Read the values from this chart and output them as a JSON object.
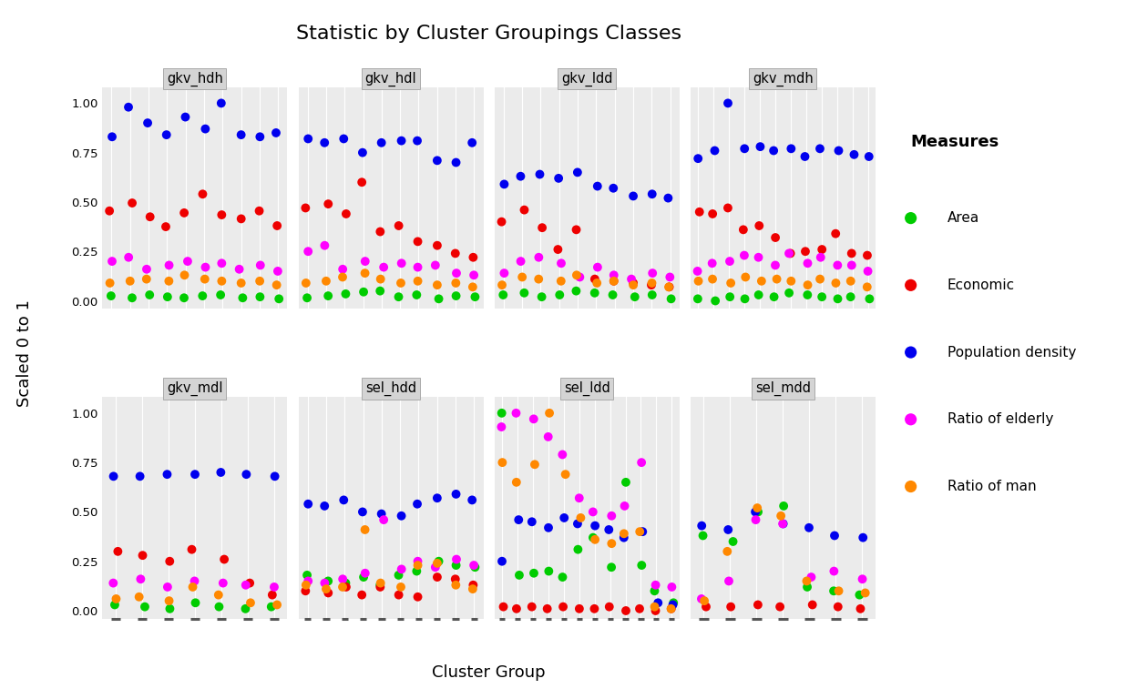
{
  "title": "Statistic by Cluster Groupings Classes",
  "xlabel": "Cluster Group",
  "ylabel": "Scaled 0 to 1",
  "colors": {
    "Area": "#00CC00",
    "Economic": "#EE0000",
    "Population density": "#0000EE",
    "Ratio of elderly": "#FF00FF",
    "Ratio of man": "#FF8800"
  },
  "data": {
    "gkv_hdh": {
      "x_positions": [
        1,
        2,
        3,
        4,
        5,
        6,
        7,
        8,
        9,
        10
      ],
      "Area": [
        0.025,
        0.015,
        0.03,
        0.02,
        0.015,
        0.025,
        0.03,
        0.015,
        0.02,
        0.01
      ],
      "Economic": [
        0.455,
        0.495,
        0.425,
        0.375,
        0.445,
        0.54,
        0.435,
        0.415,
        0.455,
        0.38
      ],
      "Population density": [
        0.83,
        0.98,
        0.9,
        0.84,
        0.93,
        0.87,
        1.0,
        0.84,
        0.83,
        0.85
      ],
      "Ratio of elderly": [
        0.2,
        0.22,
        0.16,
        0.18,
        0.2,
        0.17,
        0.19,
        0.16,
        0.18,
        0.15
      ],
      "Ratio of man": [
        0.09,
        0.1,
        0.11,
        0.1,
        0.13,
        0.11,
        0.1,
        0.09,
        0.1,
        0.08
      ]
    },
    "gkv_hdl": {
      "x_positions": [
        1,
        2,
        3,
        4,
        5,
        6,
        7,
        8,
        9,
        10
      ],
      "Area": [
        0.015,
        0.025,
        0.035,
        0.045,
        0.05,
        0.02,
        0.03,
        0.01,
        0.025,
        0.02
      ],
      "Economic": [
        0.47,
        0.49,
        0.44,
        0.6,
        0.35,
        0.38,
        0.3,
        0.28,
        0.24,
        0.22
      ],
      "Population density": [
        0.82,
        0.8,
        0.82,
        0.75,
        0.8,
        0.81,
        0.81,
        0.71,
        0.7,
        0.8
      ],
      "Ratio of elderly": [
        0.25,
        0.28,
        0.16,
        0.2,
        0.17,
        0.19,
        0.17,
        0.18,
        0.14,
        0.13
      ],
      "Ratio of man": [
        0.09,
        0.1,
        0.12,
        0.14,
        0.11,
        0.09,
        0.1,
        0.08,
        0.09,
        0.07
      ]
    },
    "gkv_ldd": {
      "x_positions": [
        1,
        2,
        3,
        4,
        5,
        6,
        7,
        8,
        9,
        10
      ],
      "Area": [
        0.03,
        0.04,
        0.02,
        0.03,
        0.05,
        0.04,
        0.03,
        0.02,
        0.03,
        0.01
      ],
      "Economic": [
        0.4,
        0.46,
        0.37,
        0.26,
        0.36,
        0.11,
        0.1,
        0.09,
        0.08,
        0.07
      ],
      "Population density": [
        0.59,
        0.63,
        0.64,
        0.62,
        0.65,
        0.58,
        0.57,
        0.53,
        0.54,
        0.52
      ],
      "Ratio of elderly": [
        0.14,
        0.2,
        0.22,
        0.19,
        0.12,
        0.17,
        0.13,
        0.11,
        0.14,
        0.12
      ],
      "Ratio of man": [
        0.08,
        0.12,
        0.11,
        0.1,
        0.13,
        0.09,
        0.1,
        0.08,
        0.09,
        0.07
      ]
    },
    "gkv_mdh": {
      "x_positions": [
        1,
        2,
        3,
        4,
        5,
        6,
        7,
        8,
        9,
        10,
        11,
        12
      ],
      "Area": [
        0.01,
        0.0,
        0.02,
        0.01,
        0.03,
        0.02,
        0.04,
        0.03,
        0.02,
        0.01,
        0.02,
        0.01
      ],
      "Economic": [
        0.45,
        0.44,
        0.47,
        0.36,
        0.38,
        0.32,
        0.24,
        0.25,
        0.26,
        0.34,
        0.24,
        0.23
      ],
      "Population density": [
        0.72,
        0.76,
        1.0,
        0.77,
        0.78,
        0.76,
        0.77,
        0.73,
        0.77,
        0.76,
        0.74,
        0.73
      ],
      "Ratio of elderly": [
        0.15,
        0.19,
        0.2,
        0.23,
        0.22,
        0.18,
        0.24,
        0.19,
        0.22,
        0.18,
        0.18,
        0.15
      ],
      "Ratio of man": [
        0.1,
        0.11,
        0.09,
        0.12,
        0.1,
        0.11,
        0.1,
        0.08,
        0.11,
        0.09,
        0.1,
        0.07
      ]
    },
    "gkv_mdl": {
      "x_positions": [
        1,
        2,
        3,
        4,
        5,
        6,
        7
      ],
      "Area": [
        0.03,
        0.02,
        0.01,
        0.04,
        0.02,
        0.01,
        0.02
      ],
      "Economic": [
        0.3,
        0.28,
        0.25,
        0.31,
        0.26,
        0.14,
        0.08
      ],
      "Population density": [
        0.68,
        0.68,
        0.69,
        0.69,
        0.7,
        0.69,
        0.68
      ],
      "Ratio of elderly": [
        0.14,
        0.16,
        0.12,
        0.15,
        0.14,
        0.13,
        0.12
      ],
      "Ratio of man": [
        0.06,
        0.07,
        0.05,
        0.12,
        0.08,
        0.04,
        0.03
      ]
    },
    "sel_hdd": {
      "x_positions": [
        1,
        2,
        3,
        4,
        5,
        6,
        7,
        8,
        9,
        10
      ],
      "Area": [
        0.18,
        0.15,
        0.14,
        0.17,
        0.13,
        0.18,
        0.2,
        0.25,
        0.23,
        0.22
      ],
      "Economic": [
        0.1,
        0.09,
        0.12,
        0.08,
        0.12,
        0.08,
        0.07,
        0.17,
        0.16,
        0.13
      ],
      "Population density": [
        0.54,
        0.53,
        0.56,
        0.5,
        0.49,
        0.48,
        0.54,
        0.57,
        0.59,
        0.56
      ],
      "Ratio of elderly": [
        0.15,
        0.14,
        0.16,
        0.19,
        0.46,
        0.21,
        0.25,
        0.22,
        0.26,
        0.23
      ],
      "Ratio of man": [
        0.13,
        0.11,
        0.12,
        0.41,
        0.14,
        0.12,
        0.23,
        0.24,
        0.13,
        0.11
      ]
    },
    "sel_ldd": {
      "x_positions": [
        1,
        2,
        3,
        4,
        5,
        6,
        7,
        8,
        9,
        10,
        11,
        12
      ],
      "Area": [
        1.0,
        0.18,
        0.19,
        0.2,
        0.17,
        0.31,
        0.37,
        0.22,
        0.65,
        0.23,
        0.1,
        0.04
      ],
      "Economic": [
        0.02,
        0.01,
        0.02,
        0.01,
        0.02,
        0.01,
        0.01,
        0.02,
        0.0,
        0.01,
        0.0,
        0.01
      ],
      "Population density": [
        0.25,
        0.46,
        0.45,
        0.42,
        0.47,
        0.44,
        0.43,
        0.41,
        0.37,
        0.4,
        0.04,
        0.03
      ],
      "Ratio of elderly": [
        0.93,
        1.0,
        0.97,
        0.88,
        0.79,
        0.57,
        0.5,
        0.48,
        0.53,
        0.75,
        0.13,
        0.12
      ],
      "Ratio of man": [
        0.75,
        0.65,
        0.74,
        1.0,
        0.69,
        0.47,
        0.36,
        0.34,
        0.39,
        0.4,
        0.02,
        0.01
      ]
    },
    "sel_mdd": {
      "x_positions": [
        1,
        2,
        3,
        4,
        5,
        6,
        7
      ],
      "Area": [
        0.38,
        0.35,
        0.5,
        0.53,
        0.12,
        0.1,
        0.08
      ],
      "Economic": [
        0.02,
        0.02,
        0.03,
        0.02,
        0.03,
        0.02,
        0.01
      ],
      "Population density": [
        0.43,
        0.41,
        0.5,
        0.44,
        0.42,
        0.38,
        0.37
      ],
      "Ratio of elderly": [
        0.06,
        0.15,
        0.46,
        0.44,
        0.17,
        0.2,
        0.16
      ],
      "Ratio of man": [
        0.05,
        0.3,
        0.52,
        0.48,
        0.15,
        0.1,
        0.09
      ]
    }
  },
  "background_color": "#FFFFFF",
  "panel_bg": "#EBEBEB",
  "grid_color": "#FFFFFF",
  "ylim": [
    0.0,
    1.05
  ]
}
